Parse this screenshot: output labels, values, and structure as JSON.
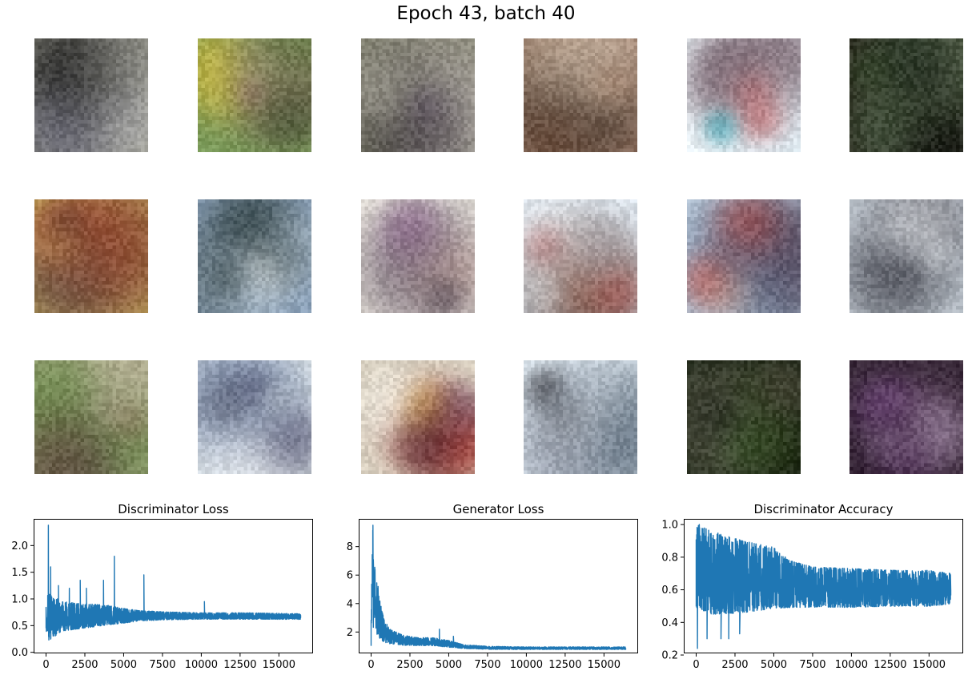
{
  "figure": {
    "suptitle": "Epoch 43, batch 40"
  },
  "samples": {
    "rows": 3,
    "cols": 6,
    "tiles": [
      {
        "bg": "#8a8a80",
        "colors": [
          "#1a1a1a",
          "#d8d8d0",
          "#6a6a7a",
          "#3a3a4a",
          "#b0b0a8"
        ]
      },
      {
        "bg": "#7a9a5a",
        "colors": [
          "#5a7a3a",
          "#8a5a6a",
          "#c8a8a8",
          "#d8c040",
          "#3a4a2a"
        ]
      },
      {
        "bg": "#8a8a78",
        "colors": [
          "#d8d4c8",
          "#2a2030",
          "#5a4a6a",
          "#a8a498",
          "#3a3a30"
        ]
      },
      {
        "bg": "#9a7a68",
        "colors": [
          "#c8b098",
          "#3a2a20",
          "#e8d8c8",
          "#6a4a38",
          "#b08870"
        ]
      },
      {
        "bg": "#eef6fa",
        "colors": [
          "#c02020",
          "#3a1a2a",
          "#30a0b0",
          "#ffffff",
          "#d8e8f0"
        ]
      },
      {
        "bg": "#2a2a1e",
        "colors": [
          "#0a0a0a",
          "#3a4a30",
          "#6a7a60",
          "#1a2a1a",
          "#4a5a44"
        ]
      },
      {
        "bg": "#c8b060",
        "colors": [
          "#7a5a40",
          "#a83020",
          "#5a4040",
          "#d8c070",
          "#3a3030"
        ]
      },
      {
        "bg": "#8aa0b8",
        "colors": [
          "#c8d8e8",
          "#1a2a2a",
          "#5a6a70",
          "#d8d8d0",
          "#2a3a3a"
        ]
      },
      {
        "bg": "#e8e4dc",
        "colors": [
          "#2a2030",
          "#8a5a8a",
          "#f0f0ea",
          "#c89888",
          "#5a4a5a"
        ]
      },
      {
        "bg": "#e0e8f0",
        "colors": [
          "#9a4040",
          "#f4f8fa",
          "#3a3030",
          "#c87050",
          "#b8c8d8"
        ]
      },
      {
        "bg": "#b8c8d8",
        "colors": [
          "#c83020",
          "#5a3a4a",
          "#d8a890",
          "#2a4060",
          "#9ab0c8"
        ]
      },
      {
        "bg": "#c8d0d8",
        "colors": [
          "#4a4a54",
          "#e8ecf0",
          "#2a2a34",
          "#8a9098",
          "#f4f6f8"
        ]
      },
      {
        "bg": "#9aa078",
        "colors": [
          "#6a8a4a",
          "#7a5a48",
          "#c8b8a8",
          "#3a3030",
          "#a89888"
        ]
      },
      {
        "bg": "#dce4e8",
        "colors": [
          "#3a3a5a",
          "#7a8aa8",
          "#f0f2f4",
          "#2a2a3a",
          "#a8b0b8"
        ]
      },
      {
        "bg": "#d8d0c0",
        "colors": [
          "#a02820",
          "#3a2a3a",
          "#d8b040",
          "#6a5a7a",
          "#eeeae0"
        ]
      },
      {
        "bg": "#dce6ee",
        "colors": [
          "#5a6a7a",
          "#2a2a30",
          "#9aa8b8",
          "#f0f4f8",
          "#7a8090"
        ]
      },
      {
        "bg": "#1a2214",
        "colors": [
          "#2a3a1a",
          "#4a4a3a",
          "#6a6a58",
          "#0a100a",
          "#3a5a2a"
        ]
      },
      {
        "bg": "#3a2a3a",
        "colors": [
          "#8a5a9a",
          "#2a1a2a",
          "#b8a0c0",
          "#5a3a5a",
          "#d0c0d8"
        ]
      }
    ]
  },
  "chart_data": [
    {
      "type": "line",
      "title": "Discriminator Loss",
      "xlabel": "",
      "ylabel": "",
      "xlim": [
        -800,
        17200
      ],
      "ylim": [
        -0.02,
        2.5
      ],
      "xticks": [
        0,
        2500,
        5000,
        7500,
        10000,
        12500,
        15000
      ],
      "yticks": [
        0.0,
        0.5,
        1.0,
        1.5,
        2.0
      ],
      "ytick_decimals": 1,
      "color": "#1f77b4",
      "series": [
        {
          "x_range": [
            0,
            16400
          ],
          "envelope_x": [
            0,
            100,
            500,
            1000,
            2000,
            3000,
            4000,
            5000,
            6000,
            7500,
            10000,
            12500,
            15000,
            16400
          ],
          "envelope_low": [
            0.35,
            0.05,
            0.15,
            0.3,
            0.35,
            0.4,
            0.45,
            0.5,
            0.55,
            0.58,
            0.6,
            0.6,
            0.6,
            0.6
          ],
          "envelope_high": [
            0.85,
            1.1,
            1.05,
            0.95,
            0.92,
            0.9,
            0.88,
            0.82,
            0.78,
            0.76,
            0.74,
            0.74,
            0.73,
            0.72
          ],
          "spikes": [
            [
              150,
              2.38
            ],
            [
              300,
              1.6
            ],
            [
              800,
              1.25
            ],
            [
              1500,
              1.2
            ],
            [
              2200,
              1.35
            ],
            [
              2600,
              1.2
            ],
            [
              3700,
              1.35
            ],
            [
              4400,
              1.8
            ],
            [
              6300,
              1.45
            ],
            [
              10200,
              0.95
            ]
          ]
        }
      ]
    },
    {
      "type": "line",
      "title": "Generator Loss",
      "xlabel": "",
      "ylabel": "",
      "xlim": [
        -800,
        17200
      ],
      "ylim": [
        0.5,
        9.95
      ],
      "xticks": [
        0,
        2500,
        5000,
        7500,
        10000,
        12500,
        15000
      ],
      "yticks": [
        2,
        4,
        6,
        8
      ],
      "ytick_decimals": 0,
      "color": "#1f77b4",
      "series": [
        {
          "x_range": [
            0,
            16400
          ],
          "envelope_x": [
            0,
            100,
            250,
            500,
            800,
            1200,
            2000,
            3000,
            4000,
            5000,
            6000,
            7500,
            10000,
            12500,
            15000,
            16400
          ],
          "envelope_low": [
            0.6,
            1.0,
            1.2,
            1.1,
            1.0,
            1.0,
            0.95,
            0.95,
            0.95,
            0.85,
            0.8,
            0.75,
            0.75,
            0.75,
            0.75,
            0.75
          ],
          "envelope_high": [
            3.0,
            9.5,
            6.4,
            4.5,
            3.0,
            2.2,
            1.8,
            1.6,
            1.6,
            1.4,
            1.1,
            1.0,
            0.95,
            0.95,
            0.95,
            0.95
          ],
          "spikes": [
            [
              120,
              9.5
            ],
            [
              250,
              6.4
            ],
            [
              450,
              5.2
            ],
            [
              700,
              3.1
            ],
            [
              4400,
              2.2
            ],
            [
              5300,
              1.7
            ]
          ]
        }
      ]
    },
    {
      "type": "line",
      "title": "Discriminator Accuracy",
      "xlabel": "",
      "ylabel": "",
      "xlim": [
        -800,
        17200
      ],
      "ylim": [
        0.21,
        1.035
      ],
      "xticks": [
        0,
        2500,
        5000,
        7500,
        10000,
        12500,
        15000
      ],
      "yticks": [
        0.2,
        0.4,
        0.6,
        0.8,
        1.0
      ],
      "ytick_decimals": 1,
      "color": "#1f77b4",
      "series": [
        {
          "x_range": [
            0,
            16400
          ],
          "envelope_x": [
            0,
            500,
            1000,
            2000,
            3000,
            4000,
            5000,
            6000,
            7500,
            10000,
            12500,
            15000,
            16400
          ],
          "envelope_low": [
            0.4,
            0.38,
            0.36,
            0.37,
            0.38,
            0.4,
            0.42,
            0.44,
            0.45,
            0.45,
            0.46,
            0.46,
            0.48
          ],
          "envelope_high": [
            1.0,
            0.98,
            0.96,
            0.93,
            0.9,
            0.88,
            0.86,
            0.78,
            0.74,
            0.73,
            0.72,
            0.72,
            0.7
          ],
          "spikes": [
            [
              80,
              0.24
            ],
            [
              700,
              0.3
            ],
            [
              1600,
              0.3
            ],
            [
              2100,
              0.3
            ],
            [
              2800,
              0.33
            ],
            [
              200,
              1.0
            ]
          ]
        }
      ]
    }
  ]
}
